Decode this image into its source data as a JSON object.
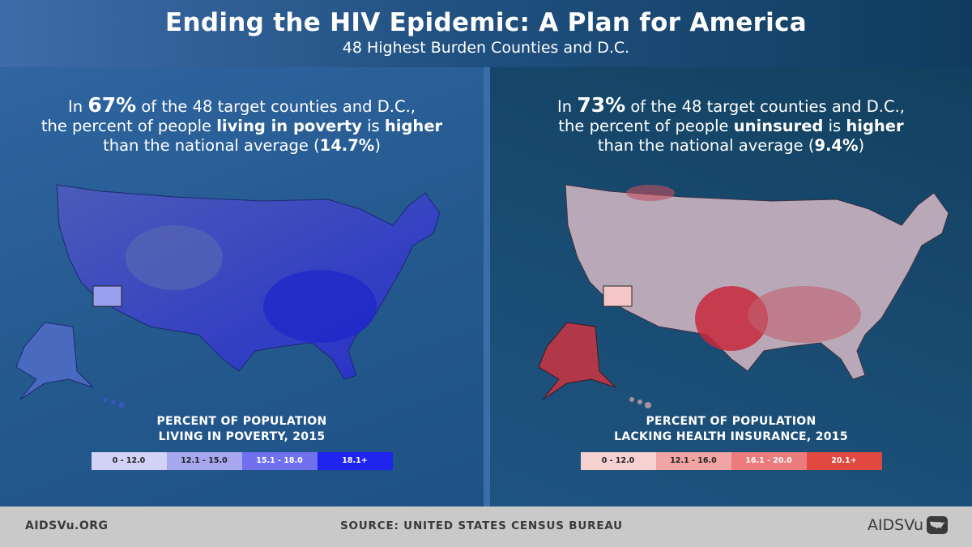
{
  "header": {
    "title": "Ending the HIV Epidemic: A Plan for America",
    "subtitle": "48 Highest Burden Counties and D.C."
  },
  "left": {
    "stat_pre": "In ",
    "stat_pct": "67%",
    "stat_mid1": " of the 48 target counties and D.C.,",
    "stat_line2_pre": "the percent of people ",
    "stat_topic": "living in poverty",
    "stat_is": " is ",
    "stat_higher": "higher",
    "stat_line3_pre": "than the national average (",
    "stat_avg": "14.7%",
    "stat_close": ")",
    "legend_title_1": "PERCENT OF POPULATION",
    "legend_title_2": "LIVING IN POVERTY, 2015",
    "legend": [
      {
        "label": "0 - 12.0",
        "color": "#d2d2f7"
      },
      {
        "label": "12.1 - 15.0",
        "color": "#a7a7f0"
      },
      {
        "label": "15.1 - 18.0",
        "color": "#7171ee"
      },
      {
        "label": "18.1+",
        "color": "#1f24ee"
      }
    ]
  },
  "right": {
    "stat_pre": "In ",
    "stat_pct": "73%",
    "stat_mid1": " of the 48 target counties and D.C.,",
    "stat_line2_pre": "the percent of people ",
    "stat_topic": "uninsured",
    "stat_is": " is ",
    "stat_higher": "higher",
    "stat_line3_pre": "than the national average (",
    "stat_avg": "9.4%",
    "stat_close": ")",
    "legend_title_1": "PERCENT OF POPULATION",
    "legend_title_2": "LACKING HEALTH INSURANCE, 2015",
    "legend": [
      {
        "label": "0 - 12.0",
        "color": "#f7d0d0"
      },
      {
        "label": "12.1 - 16.0",
        "color": "#f0a4a4"
      },
      {
        "label": "16.1 - 20.0",
        "color": "#ec7b7b"
      },
      {
        "label": "20.1+",
        "color": "#e04840"
      }
    ]
  },
  "footer": {
    "site": "AIDSVu.ORG",
    "source": "SOURCE: UNITED STATES CENSUS BUREAU",
    "logo": "AIDSVu"
  }
}
